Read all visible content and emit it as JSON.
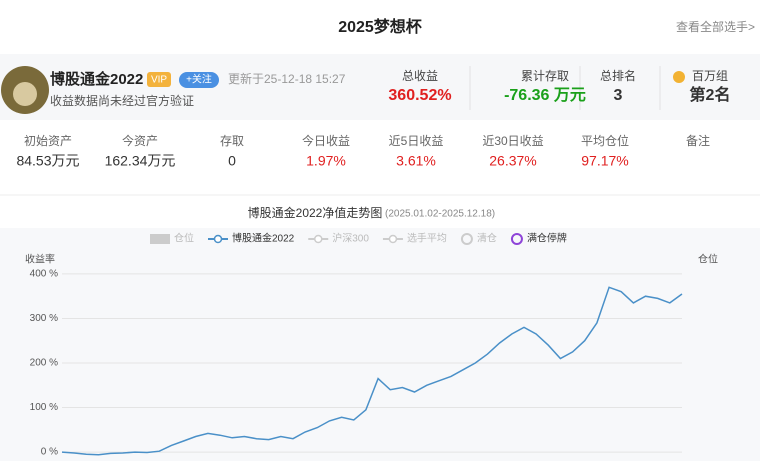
{
  "header": {
    "title": "2025梦想杯",
    "link": "查看全部选手>"
  },
  "profile": {
    "name": "博股通金2022",
    "badge": "VIP",
    "follow": "+关注",
    "updated": "更新于25-12-18 15:27",
    "note": "收益数据尚未经过官方验证"
  },
  "summary": [
    {
      "label": "总收益",
      "value": "360.52%"
    },
    {
      "label": "累计存取",
      "value": "-76.36 万元"
    },
    {
      "label": "总排名",
      "value": "3"
    },
    {
      "label": "百万组",
      "value": "第2名"
    }
  ],
  "stats": [
    {
      "label": "初始资产",
      "value": "84.53万元"
    },
    {
      "label": "今资产",
      "value": "162.34万元"
    },
    {
      "label": "存取",
      "value": "0"
    },
    {
      "label": "今日收益",
      "value": "1.97%"
    },
    {
      "label": "近5日收益",
      "value": "3.61%"
    },
    {
      "label": "近30日收益",
      "value": "26.37%"
    },
    {
      "label": "平均仓位",
      "value": "97.17%"
    },
    {
      "label": "备注",
      "value": null
    }
  ],
  "chart_data": {
    "type": "line",
    "title": "博股通金2022净值走势图",
    "subtitle": "(2025.01.02-2025.12.18)",
    "y_label": "收益率",
    "y2_label": "仓位",
    "legend": [
      {
        "name": "仓位",
        "color": "#cccccc",
        "shape": "rect"
      },
      {
        "name": "沪深300",
        "color": "#cccccc",
        "shape": "line"
      },
      {
        "name": "选手平均",
        "color": "#cccccc",
        "shape": "line"
      },
      {
        "name": "清仓",
        "color": "#cccccc",
        "shape": "circle"
      },
      {
        "name": "满仓停牌",
        "color": "#8e44d8",
        "shape": "circle"
      }
    ],
    "series": [
      {
        "name": "博股通金2022",
        "color": "#4a90c8",
        "values": [
          0,
          -2,
          -5,
          -6,
          -3,
          -2,
          0,
          -1,
          2,
          15,
          25,
          35,
          42,
          38,
          32,
          35,
          30,
          28,
          35,
          30,
          45,
          55,
          70,
          78,
          72,
          95,
          165,
          140,
          145,
          135,
          150,
          160,
          170,
          185,
          200,
          220,
          245,
          265,
          280,
          265,
          240,
          210,
          225,
          250,
          290,
          370,
          360,
          335,
          350,
          345,
          335,
          355
        ]
      }
    ],
    "ylim": [
      -20,
      420
    ],
    "yticks": [
      {
        "value": 0,
        "label": "0 %"
      },
      {
        "value": 100,
        "label": "100 %"
      },
      {
        "value": 200,
        "label": "200 %"
      },
      {
        "value": 300,
        "label": "300 %"
      },
      {
        "value": 400,
        "label": "400 %"
      }
    ],
    "grid": true
  }
}
